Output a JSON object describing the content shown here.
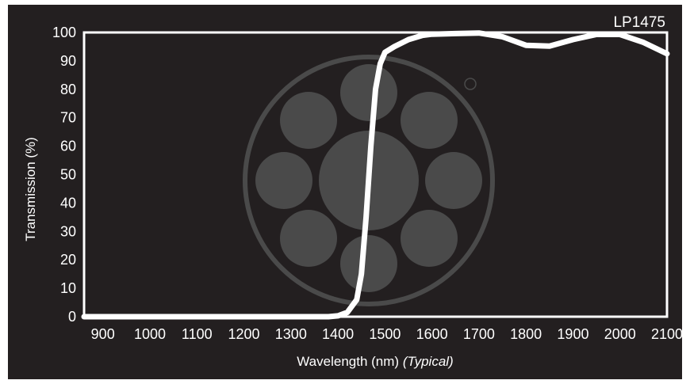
{
  "chart_data": {
    "type": "line",
    "title": "LP1475",
    "xlabel": "Wavelength (nm)",
    "xlabel_suffix": "(Typical)",
    "ylabel": "Transmission (%)",
    "xlim": [
      860,
      2100
    ],
    "ylim": [
      0,
      100
    ],
    "x_ticks": [
      900,
      1000,
      1100,
      1200,
      1300,
      1400,
      1500,
      1600,
      1700,
      1800,
      1900,
      2000,
      2100
    ],
    "y_ticks": [
      0,
      10,
      20,
      30,
      40,
      50,
      60,
      70,
      80,
      90,
      100
    ],
    "grid": false,
    "colors": {
      "background": "#231f20",
      "line": "#ffffff",
      "watermark": "#4a4a4a"
    },
    "series": [
      {
        "x": [
          860,
          1000,
          1200,
          1380,
          1400,
          1420,
          1440,
          1450,
          1460,
          1470,
          1480,
          1490,
          1500,
          1520,
          1550,
          1580,
          1600,
          1650,
          1700,
          1750,
          1800,
          1850,
          1900,
          1950,
          2000,
          2050,
          2100
        ],
        "y": [
          0,
          0,
          0,
          0,
          0.3,
          1.5,
          6,
          15,
          35,
          60,
          80,
          89,
          93,
          95,
          97.5,
          99,
          99.4,
          99.6,
          99.8,
          98.5,
          95.5,
          95.2,
          97.5,
          99.3,
          99.3,
          96.5,
          92.5
        ]
      }
    ]
  }
}
